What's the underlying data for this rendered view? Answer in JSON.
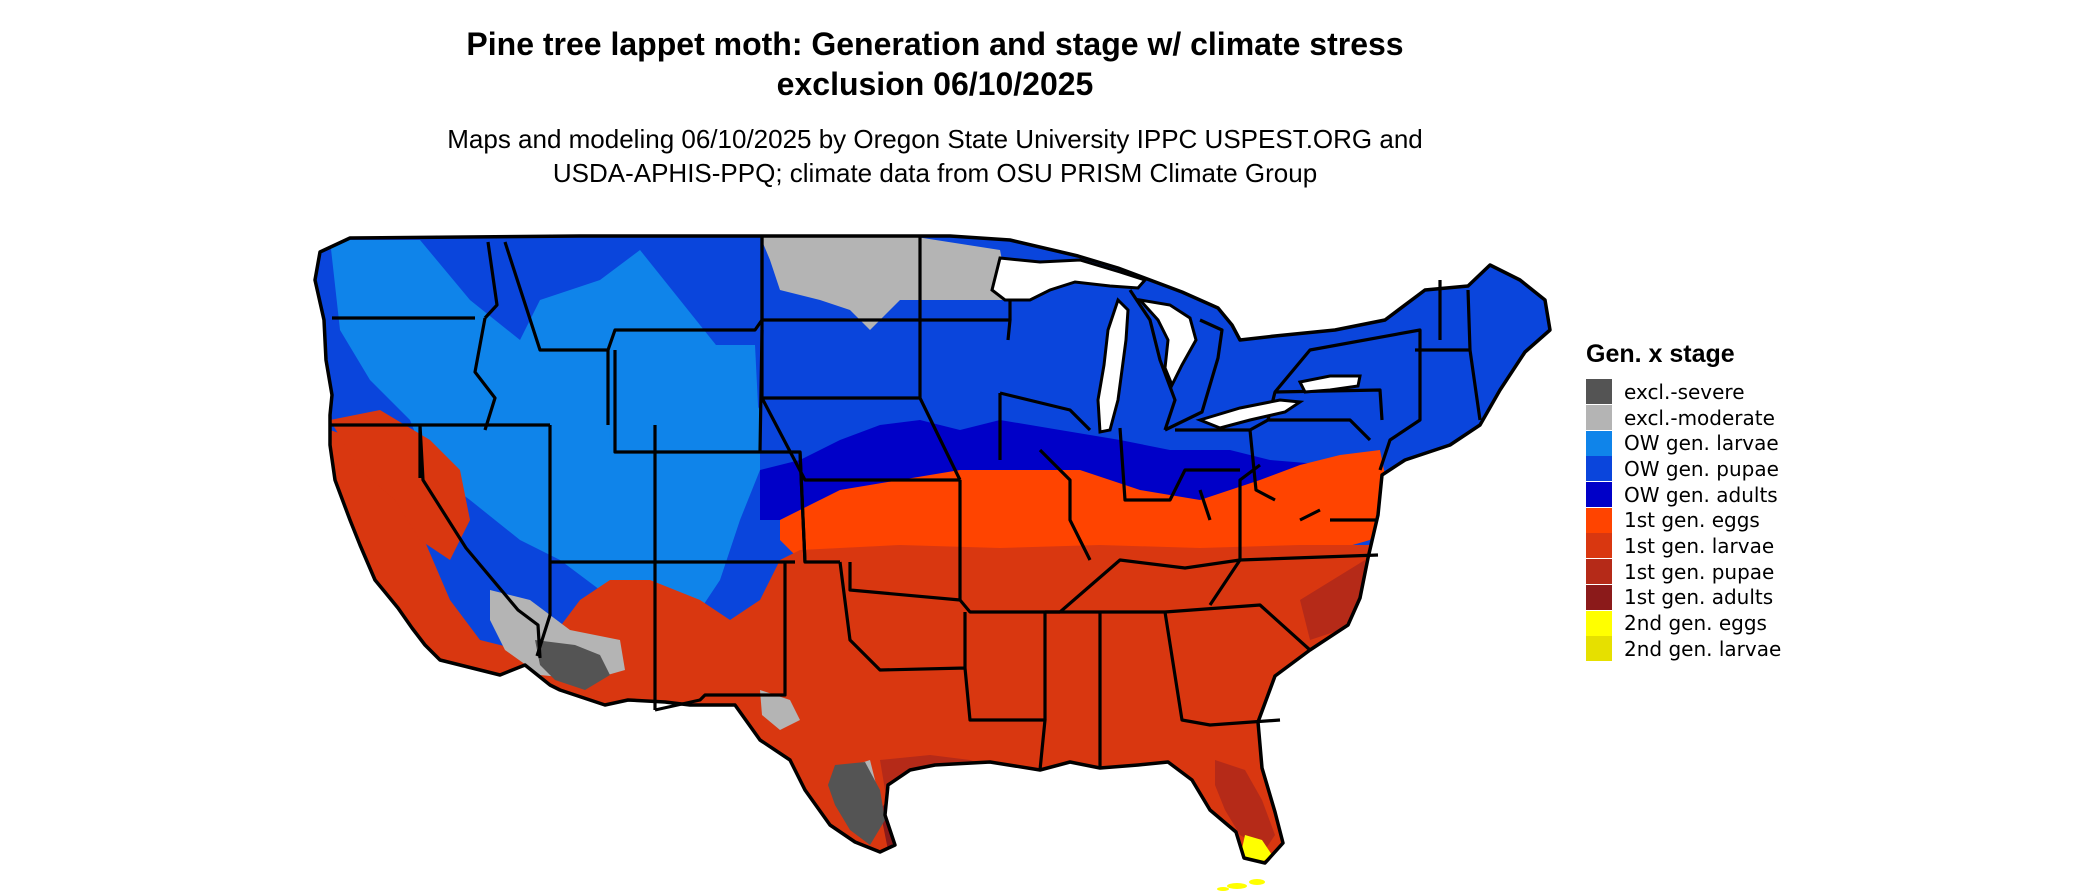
{
  "title_line1": "Pine tree lappet moth: Generation and stage w/ climate stress",
  "title_line2": "exclusion 06/10/2025",
  "subtitle_line1": "Maps and modeling 06/10/2025 by Oregon State University IPPC USPEST.ORG and",
  "subtitle_line2": "USDA-APHIS-PPQ; climate data from OSU PRISM Climate Group",
  "legend": {
    "title": "Gen. x stage",
    "items": [
      {
        "label": "excl.-severe",
        "color": "#545454"
      },
      {
        "label": "excl.-moderate",
        "color": "#b4b4b4"
      },
      {
        "label": "OW gen. larvae",
        "color": "#0f84ea"
      },
      {
        "label": "OW gen. pupae",
        "color": "#0a45dc"
      },
      {
        "label": "OW gen. adults",
        "color": "#0000c8"
      },
      {
        "label": "1st gen. eggs",
        "color": "#ff4400"
      },
      {
        "label": "1st gen. larvae",
        "color": "#d93710"
      },
      {
        "label": "1st gen. pupae",
        "color": "#b52a18"
      },
      {
        "label": "1st gen. adults",
        "color": "#8b1a1a"
      },
      {
        "label": "2nd gen. eggs",
        "color": "#ffff00"
      },
      {
        "label": "2nd gen. larvae",
        "color": "#e6e000"
      }
    ]
  }
}
